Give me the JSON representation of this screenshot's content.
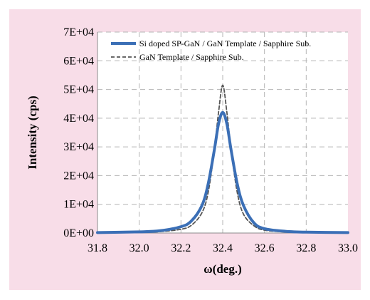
{
  "chart_data": {
    "type": "line",
    "xlabel": "ω(deg.)",
    "ylabel": "Intensity (cps)",
    "xlim": [
      31.8,
      33.0
    ],
    "ylim": [
      0,
      70000
    ],
    "x_ticks": [
      "31.8",
      "32.0",
      "32.2",
      "32.4",
      "32.6",
      "32.8",
      "33.0"
    ],
    "y_ticks": [
      "0E+00",
      "1E+04",
      "2E+04",
      "3E+04",
      "4E+04",
      "5E+04",
      "6E+04",
      "7E+04"
    ],
    "grid": true,
    "grid_style": "dashed",
    "legend_position": "top",
    "series": [
      {
        "name": "Si doped SP-GaN / GaN Template / Sapphire Sub.",
        "color": "#3b6fb6",
        "style": "solid",
        "x": [
          31.8,
          32.0,
          32.1,
          32.2,
          32.25,
          32.3,
          32.33,
          32.36,
          32.38,
          32.4,
          32.42,
          32.44,
          32.47,
          32.5,
          32.55,
          32.6,
          32.7,
          32.8,
          33.0
        ],
        "y": [
          150,
          400,
          800,
          2200,
          4200,
          9500,
          17000,
          29000,
          38000,
          42000,
          38000,
          29000,
          17000,
          9500,
          3500,
          1500,
          600,
          300,
          150
        ]
      },
      {
        "name": "GaN Template / Sapphire Sub.",
        "color": "#555555",
        "style": "dashed",
        "x": [
          31.8,
          32.0,
          32.1,
          32.2,
          32.25,
          32.3,
          32.33,
          32.36,
          32.38,
          32.4,
          32.42,
          32.44,
          32.47,
          32.5,
          32.55,
          32.6,
          32.7,
          32.8,
          33.0
        ],
        "y": [
          100,
          250,
          500,
          1300,
          2700,
          7000,
          14000,
          29000,
          42000,
          51500,
          42000,
          29000,
          14000,
          6500,
          2500,
          1000,
          400,
          200,
          100
        ]
      }
    ]
  }
}
